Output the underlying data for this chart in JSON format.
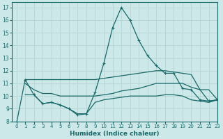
{
  "xlabel": "Humidex (Indice chaleur)",
  "bg_color": "#cce8e8",
  "grid_color": "#b8d8d8",
  "line_color": "#1a6868",
  "xlim": [
    -0.5,
    23
  ],
  "ylim": [
    8,
    17.4
  ],
  "yticks": [
    8,
    9,
    10,
    11,
    12,
    13,
    14,
    15,
    16,
    17
  ],
  "xticks": [
    0,
    1,
    2,
    3,
    4,
    5,
    6,
    7,
    8,
    9,
    10,
    11,
    12,
    13,
    14,
    15,
    16,
    17,
    18,
    19,
    20,
    21,
    22,
    23
  ],
  "series": [
    {
      "x": [
        0,
        1,
        2,
        3,
        4,
        5,
        6,
        7,
        8,
        9,
        10,
        11,
        12,
        13,
        14,
        15,
        16,
        17,
        18,
        19,
        20,
        21,
        22,
        23
      ],
      "y": [
        7.8,
        11.3,
        10.1,
        9.4,
        9.5,
        9.3,
        9.0,
        8.5,
        8.6,
        10.3,
        12.6,
        15.4,
        17.0,
        16.0,
        14.4,
        13.2,
        12.4,
        11.8,
        11.8,
        10.6,
        10.5,
        9.7,
        9.6,
        9.7
      ],
      "marker": "+"
    },
    {
      "x": [
        1,
        2,
        3,
        4,
        5,
        6,
        7,
        8,
        9,
        10,
        11,
        12,
        13,
        14,
        15,
        16,
        17,
        18,
        19,
        20,
        21,
        22,
        23
      ],
      "y": [
        11.3,
        11.3,
        11.3,
        11.3,
        11.3,
        11.3,
        11.3,
        11.3,
        11.3,
        11.4,
        11.5,
        11.6,
        11.7,
        11.8,
        11.9,
        12.0,
        12.0,
        11.9,
        11.8,
        11.7,
        10.5,
        10.5,
        9.7
      ],
      "marker": null
    },
    {
      "x": [
        1,
        2,
        3,
        4,
        5,
        6,
        7,
        8,
        9,
        10,
        11,
        12,
        13,
        14,
        15,
        16,
        17,
        18,
        19,
        20,
        21,
        22,
        23
      ],
      "y": [
        11.0,
        10.5,
        10.2,
        10.2,
        10.0,
        10.0,
        10.0,
        10.0,
        10.0,
        10.1,
        10.2,
        10.4,
        10.5,
        10.6,
        10.8,
        11.0,
        11.0,
        11.0,
        11.0,
        10.7,
        10.5,
        9.6,
        9.7
      ],
      "marker": null
    },
    {
      "x": [
        1,
        2,
        3,
        4,
        5,
        6,
        7,
        8,
        9,
        10,
        11,
        12,
        13,
        14,
        15,
        16,
        17,
        18,
        19,
        20,
        21,
        22,
        23
      ],
      "y": [
        10.1,
        10.1,
        9.4,
        9.5,
        9.3,
        9.0,
        8.6,
        8.6,
        9.5,
        9.7,
        9.8,
        9.9,
        10.0,
        10.0,
        10.0,
        10.0,
        10.1,
        10.1,
        10.0,
        9.7,
        9.6,
        9.5,
        9.7
      ],
      "marker": null
    }
  ]
}
